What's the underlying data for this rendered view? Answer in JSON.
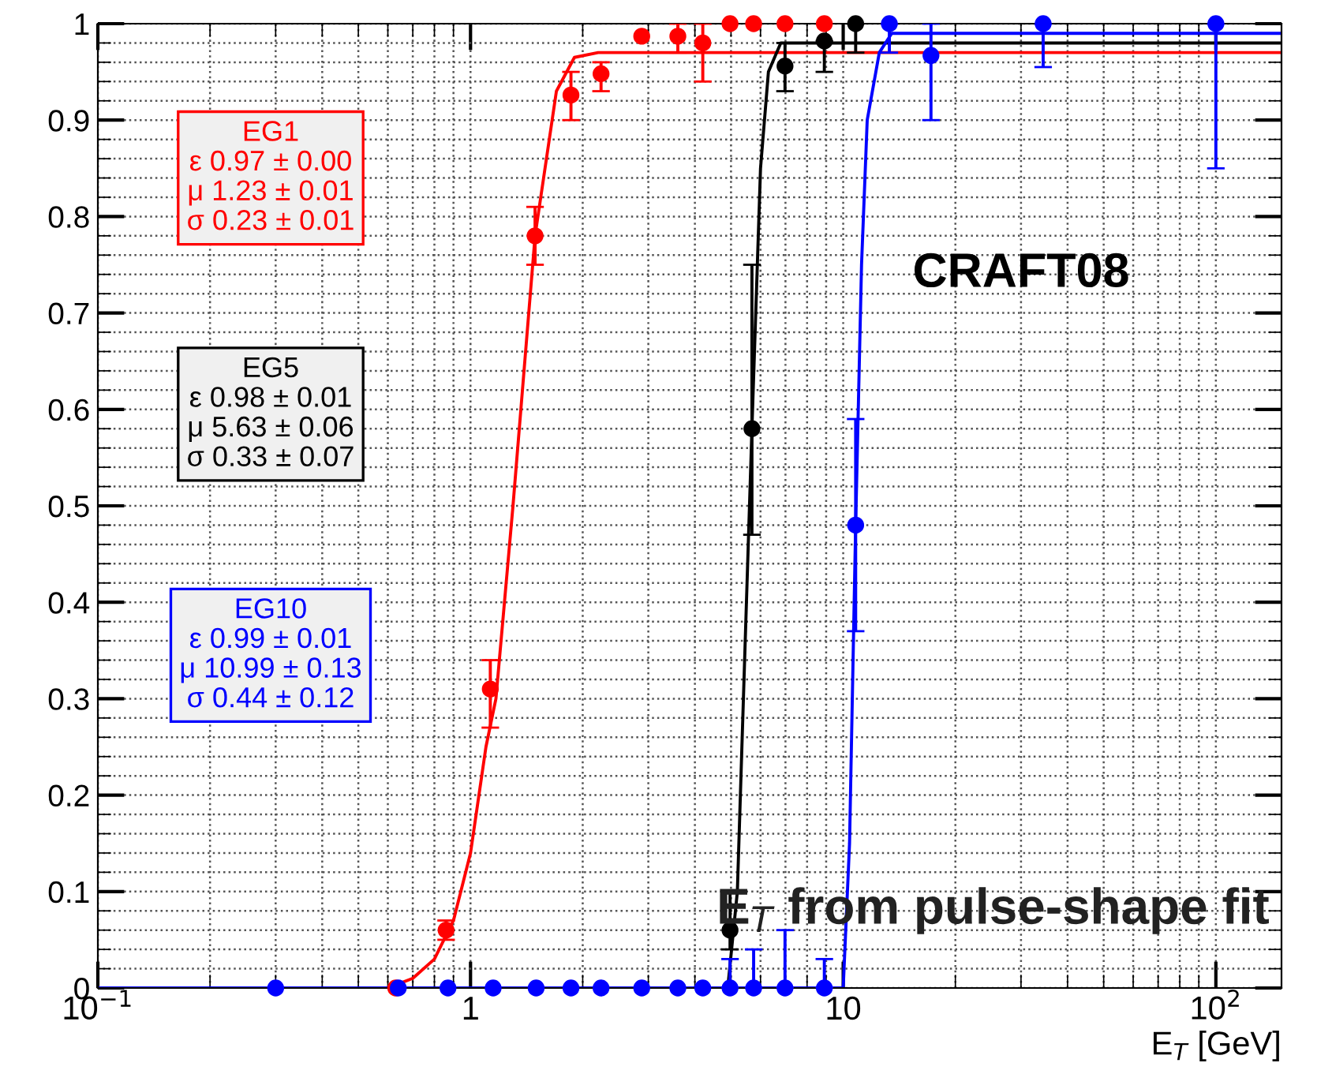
{
  "chart_data": {
    "type": "scatter",
    "xlabel": "E$_{T}$ [GeV]",
    "log": "x",
    "grid": true,
    "marker": "circle",
    "xlim": [
      0.1,
      150
    ],
    "xticks": [
      {
        "value": 0.1,
        "label": "10$^{−1}$"
      },
      1,
      10,
      {
        "value": 100,
        "label": "10$^{2}$"
      }
    ],
    "ylim": [
      0,
      1
    ],
    "yticks": [
      0,
      0.1,
      0.2,
      0.3,
      0.4,
      0.5,
      0.6,
      0.7,
      0.8,
      0.9,
      1
    ],
    "series": [
      {
        "type": "line",
        "marker": "none",
        "color": "#ff0000",
        "x": [
          0.1,
          0.6,
          0.7,
          0.8,
          0.9,
          1.0,
          1.1,
          1.17,
          1.3,
          1.49,
          1.7,
          1.9,
          2.2,
          150
        ],
        "values": [
          0,
          0,
          0.01,
          0.03,
          0.07,
          0.14,
          0.25,
          0.3,
          0.5,
          0.78,
          0.93,
          0.965,
          0.97,
          0.97
        ]
      },
      {
        "type": "line",
        "marker": "none",
        "color": "#000000",
        "x": [
          0.1,
          4.9,
          5.2,
          5.5,
          5.69,
          6.0,
          6.3,
          6.8,
          150
        ],
        "values": [
          0,
          0,
          0.1,
          0.4,
          0.58,
          0.85,
          0.95,
          0.98,
          0.98
        ]
      },
      {
        "type": "line",
        "marker": "none",
        "color": "#0000ff",
        "x": [
          0.1,
          10.0,
          10.4,
          10.8,
          11.2,
          11.6,
          12.5,
          13.5,
          150
        ],
        "values": [
          0,
          0,
          0.15,
          0.48,
          0.75,
          0.9,
          0.97,
          0.99,
          0.99
        ]
      },
      {
        "color": "#ff0000",
        "x": [
          0.63,
          0.86,
          1.13,
          1.49,
          1.86,
          2.24,
          2.88,
          3.6,
          4.2,
          4.97,
          5.75,
          6.98,
          8.9
        ],
        "values": [
          0,
          0.06,
          0.31,
          0.78,
          0.926,
          0.948,
          0.987,
          0.987,
          0.98,
          1,
          1,
          1,
          1
        ],
        "errors": [
          null,
          0.01,
          [
            0.27,
            0.34
          ],
          [
            0.75,
            0.81
          ],
          [
            0.9,
            0.95
          ],
          [
            0.93,
            0.96
          ],
          null,
          [
            0.97,
            1
          ],
          [
            0.94,
            1
          ],
          null,
          null,
          null,
          null
        ]
      },
      {
        "color": "#000000",
        "x": [
          4.97,
          5.69,
          6.98,
          8.9,
          10.8
        ],
        "values": [
          0.06,
          0.58,
          0.956,
          0.982,
          1
        ],
        "errors": [
          [
            0.04,
            0.1
          ],
          [
            0.47,
            0.75
          ],
          [
            0.93,
            0.98
          ],
          [
            0.95,
            0.982
          ],
          [
            0.97,
            1
          ]
        ]
      },
      {
        "color": "#0000ff",
        "x": [
          0.3,
          0.64,
          0.87,
          1.15,
          1.5,
          1.86,
          2.24,
          2.88,
          3.6,
          4.2,
          4.97,
          5.75,
          6.98,
          8.9,
          10.8,
          13.3,
          17.2,
          34.4,
          100
        ],
        "values": [
          0,
          0,
          0,
          0,
          0,
          0,
          0,
          0,
          0,
          0,
          0,
          0,
          0,
          0,
          0.48,
          1,
          0.967,
          1,
          1
        ],
        "errors": [
          null,
          null,
          null,
          null,
          null,
          null,
          null,
          null,
          null,
          null,
          [
            0,
            0.03
          ],
          [
            0,
            0.04
          ],
          [
            0,
            0.06
          ],
          [
            0,
            0.03
          ],
          [
            0.37,
            0.59
          ],
          [
            0.97,
            1
          ],
          [
            0.9,
            1
          ],
          [
            0.955,
            1
          ],
          [
            0.85,
            1
          ]
        ]
      }
    ],
    "annotations": [
      "EG1\nε 0.97 ± 0.00\nμ 1.23 ± 0.01\nσ 0.23 ± 0.01",
      "EG5\nε 0.98 ± 0.01\nμ 5.63 ± 0.06\nσ 0.33 ± 0.07",
      "EG10\nε 0.99 ± 0.01\nμ 10.99 ± 0.13\nσ 0.44 ± 0.12",
      "CRAFT08",
      "E$_{T}$ from pulse-shape fit"
    ]
  }
}
